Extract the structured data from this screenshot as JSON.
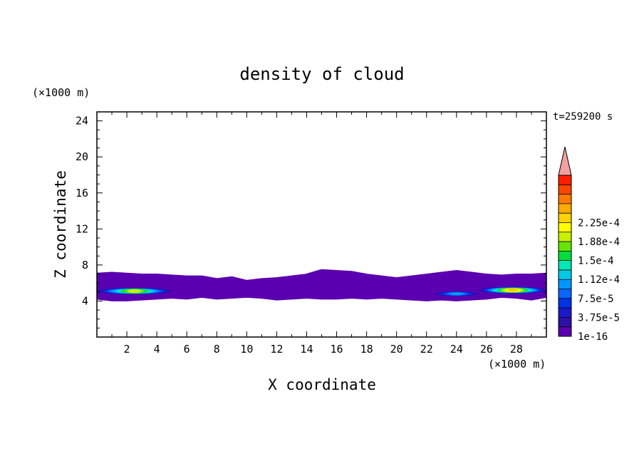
{
  "chart_data": {
    "type": "heatmap",
    "title": "density of cloud",
    "xlabel": "X coordinate",
    "ylabel": "Z coordinate",
    "x_unit": "(×1000 m)",
    "y_unit": "(×1000 m)",
    "time_label": "t=259200 s",
    "xlim": [
      0,
      30
    ],
    "ylim": [
      0,
      25
    ],
    "x_ticks": [
      2,
      4,
      6,
      8,
      10,
      12,
      14,
      16,
      18,
      20,
      22,
      24,
      26,
      28
    ],
    "y_ticks": [
      4,
      8,
      12,
      16,
      20,
      24
    ],
    "colorbar": {
      "labels": [
        "1e-16",
        "3.75e-5",
        "7.5e-5",
        "1.12e-4",
        "1.5e-4",
        "1.88e-4",
        "2.25e-4"
      ],
      "colors": [
        "#5a00b0",
        "#2d0fa8",
        "#1a1ac8",
        "#0032e6",
        "#0a64ff",
        "#0096ff",
        "#00c8e6",
        "#00e6b4",
        "#00dc3c",
        "#64e600",
        "#c8f000",
        "#ffff00",
        "#ffd200",
        "#ffaa00",
        "#ff7800",
        "#ff4600",
        "#ff1e00"
      ],
      "over_color": "#f4a0a0"
    },
    "cloud_layer": {
      "base_z": 4.2,
      "top_z": 7.2,
      "profile": [
        {
          "x": 0.0,
          "bottom": 4.4,
          "top": 6.9
        },
        {
          "x": 1.0,
          "bottom": 4.2,
          "top": 7.0
        },
        {
          "x": 2.0,
          "bottom": 4.2,
          "top": 6.9
        },
        {
          "x": 3.0,
          "bottom": 4.3,
          "top": 6.8
        },
        {
          "x": 4.0,
          "bottom": 4.4,
          "top": 6.8
        },
        {
          "x": 5.0,
          "bottom": 4.5,
          "top": 6.7
        },
        {
          "x": 6.0,
          "bottom": 4.4,
          "top": 6.6
        },
        {
          "x": 7.0,
          "bottom": 4.6,
          "top": 6.6
        },
        {
          "x": 8.0,
          "bottom": 4.4,
          "top": 6.3
        },
        {
          "x": 9.0,
          "bottom": 4.5,
          "top": 6.5
        },
        {
          "x": 10.0,
          "bottom": 4.6,
          "top": 6.1
        },
        {
          "x": 11.0,
          "bottom": 4.5,
          "top": 6.3
        },
        {
          "x": 12.0,
          "bottom": 4.3,
          "top": 6.4
        },
        {
          "x": 13.0,
          "bottom": 4.4,
          "top": 6.6
        },
        {
          "x": 14.0,
          "bottom": 4.5,
          "top": 6.8
        },
        {
          "x": 15.0,
          "bottom": 4.4,
          "top": 7.3
        },
        {
          "x": 16.0,
          "bottom": 4.4,
          "top": 7.2
        },
        {
          "x": 17.0,
          "bottom": 4.5,
          "top": 7.1
        },
        {
          "x": 18.0,
          "bottom": 4.4,
          "top": 6.8
        },
        {
          "x": 19.0,
          "bottom": 4.5,
          "top": 6.6
        },
        {
          "x": 20.0,
          "bottom": 4.4,
          "top": 6.4
        },
        {
          "x": 21.0,
          "bottom": 4.3,
          "top": 6.6
        },
        {
          "x": 22.0,
          "bottom": 4.2,
          "top": 6.8
        },
        {
          "x": 23.0,
          "bottom": 4.3,
          "top": 7.0
        },
        {
          "x": 24.0,
          "bottom": 4.2,
          "top": 7.2
        },
        {
          "x": 25.0,
          "bottom": 4.3,
          "top": 7.0
        },
        {
          "x": 26.0,
          "bottom": 4.4,
          "top": 6.8
        },
        {
          "x": 27.0,
          "bottom": 4.6,
          "top": 6.7
        },
        {
          "x": 28.0,
          "bottom": 4.5,
          "top": 6.8
        },
        {
          "x": 29.0,
          "bottom": 4.3,
          "top": 6.8
        },
        {
          "x": 30.0,
          "bottom": 4.6,
          "top": 6.9
        }
      ],
      "cores": [
        {
          "x0": 0.0,
          "x1": 5.0,
          "z_center": 5.1,
          "half_thickness": 0.35,
          "peak": 7.5e-05
        },
        {
          "x0": 22.5,
          "x1": 25.5,
          "z_center": 4.8,
          "half_thickness": 0.25,
          "peak": 3.75e-05
        },
        {
          "x0": 25.5,
          "x1": 30.0,
          "z_center": 5.2,
          "half_thickness": 0.35,
          "peak": 9e-05
        }
      ]
    }
  }
}
